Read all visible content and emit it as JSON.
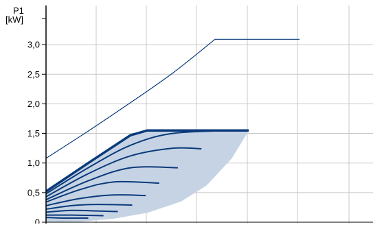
{
  "chart_data": {
    "type": "line",
    "title": "",
    "ylabel_line1": "P1",
    "ylabel_line2": "[kW]",
    "ylim": [
      0,
      3.5
    ],
    "yticks": [
      {
        "value": 0.0,
        "label": "0"
      },
      {
        "value": 0.5,
        "label": "0,5"
      },
      {
        "value": 1.0,
        "label": "1,0"
      },
      {
        "value": 1.5,
        "label": "1,5"
      },
      {
        "value": 2.0,
        "label": "2,0"
      },
      {
        "value": 2.5,
        "label": "2,5"
      },
      {
        "value": 3.0,
        "label": "3,0"
      }
    ],
    "grid": true,
    "colors": {
      "line": "#0a3a7a",
      "fill": "#c5d3e4",
      "grid": "#c8c8c8",
      "axis": "#000000"
    },
    "max_curve": {
      "x": [
        0,
        5,
        10,
        15,
        20,
        25,
        30
      ],
      "y": [
        1.08,
        1.54,
        2.02,
        2.52,
        3.09,
        3.09,
        3.09
      ]
    },
    "envelope_top": {
      "x": [
        0,
        5,
        10,
        12,
        15,
        20,
        24
      ],
      "y": [
        0.52,
        1.0,
        1.47,
        1.55,
        1.55,
        1.55,
        1.55
      ]
    },
    "envelope_right": {
      "x": [
        24,
        22,
        19,
        16,
        12,
        8,
        4,
        0
      ],
      "y": [
        1.55,
        1.08,
        0.62,
        0.35,
        0.16,
        0.06,
        0.01,
        0
      ]
    },
    "family_curves": [
      {
        "x": [
          0,
          5,
          10,
          15,
          22.3
        ],
        "y": [
          0.48,
          0.92,
          1.3,
          1.5,
          1.55
        ]
      },
      {
        "x": [
          0,
          5,
          10,
          15,
          18.4
        ],
        "y": [
          0.43,
          0.82,
          1.12,
          1.25,
          1.24
        ]
      },
      {
        "x": [
          0,
          5,
          10,
          15.6
        ],
        "y": [
          0.38,
          0.7,
          0.92,
          0.92
        ]
      },
      {
        "x": [
          0,
          4,
          8,
          13.4
        ],
        "y": [
          0.34,
          0.55,
          0.68,
          0.66
        ]
      },
      {
        "x": [
          0,
          4,
          8,
          11.8
        ],
        "y": [
          0.28,
          0.4,
          0.46,
          0.45
        ]
      },
      {
        "x": [
          0,
          3,
          6,
          10.2
        ],
        "y": [
          0.22,
          0.28,
          0.3,
          0.29
        ]
      },
      {
        "x": [
          0,
          3,
          6,
          8.5
        ],
        "y": [
          0.17,
          0.2,
          0.19,
          0.18
        ]
      },
      {
        "x": [
          0,
          3,
          6.8
        ],
        "y": [
          0.12,
          0.12,
          0.11
        ]
      },
      {
        "x": [
          0,
          2,
          5.0
        ],
        "y": [
          0.08,
          0.07,
          0.07
        ]
      }
    ]
  }
}
